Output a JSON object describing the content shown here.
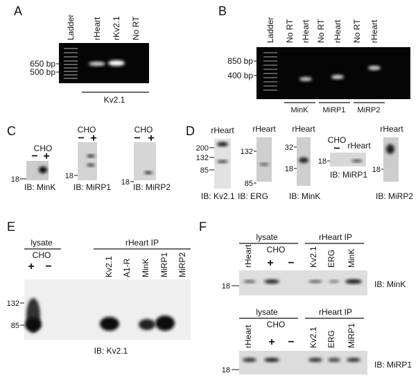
{
  "panels": {
    "a": {
      "label": "A",
      "lanes": [
        "Ladder",
        "rHeart",
        "rKv2.1",
        "No RT"
      ],
      "markers": [
        "650 bp",
        "500 bp"
      ],
      "group": "Kv2.1"
    },
    "b": {
      "label": "B",
      "lanes": [
        "Ladder",
        "No RT",
        "rHeart",
        "No RT",
        "rHeart",
        "No RT",
        "rHeart"
      ],
      "markers": [
        "850 bp",
        "400 bp"
      ],
      "groups": [
        "MinK",
        "MiRP1",
        "MiRP2"
      ]
    },
    "c": {
      "label": "C",
      "blots": [
        {
          "cell": "CHO",
          "minus": "−",
          "plus": "+",
          "marker": "18",
          "ib": "IB: MinK"
        },
        {
          "cell": "CHO",
          "minus": "−",
          "plus": "+",
          "marker": "18",
          "ib": "IB: MiRP1"
        },
        {
          "cell": "CHO",
          "minus": "−",
          "plus": "+",
          "marker": "18",
          "ib": "IB: MiRP2"
        }
      ]
    },
    "d": {
      "label": "D",
      "blots": [
        {
          "lane": "rHeart",
          "markers": [
            "200",
            "132",
            "85"
          ],
          "ib": "IB: Kv2.1"
        },
        {
          "lane": "rHeart",
          "markers": [
            "132",
            "85"
          ],
          "ib": "IB: ERG"
        },
        {
          "lane": "rHeart",
          "markers": [
            "32",
            "18"
          ],
          "ib": "IB: MinK"
        },
        {
          "cell": "CHO",
          "minus": "−",
          "lane": "rHeart",
          "markers": [
            "18"
          ],
          "ib": "IB: MiRP1"
        },
        {
          "lane": "rHeart",
          "markers": [
            "18"
          ],
          "ib": "IB: MiRP2"
        }
      ]
    },
    "e": {
      "label": "E",
      "lysate": "lysate",
      "cell": "CHO",
      "plus": "+",
      "minus": "−",
      "ip": "rHeart IP",
      "lanes": [
        "Kv2.1",
        "A1-R",
        "MinK",
        "MiRP1",
        "MiRP2"
      ],
      "markers": [
        "132",
        "85"
      ],
      "ib": "IB: Kv2.1"
    },
    "f": {
      "label": "F",
      "blots": [
        {
          "lysate": "lysate",
          "heart": "rHeart",
          "cell": "CHO",
          "plus": "+",
          "minus": "−",
          "ip": "rHeart IP",
          "lanes": [
            "Kv2.1",
            "ERG",
            "MinK"
          ],
          "marker": "18",
          "ib": "IB: MinK"
        },
        {
          "lysate": "lysate",
          "heart": "rHeart",
          "cell": "CHO",
          "plus": "+",
          "minus": "−",
          "ip": "rHeart IP",
          "lanes": [
            "Kv2.1",
            "ERG",
            "MiRP1"
          ],
          "marker": "18",
          "ib": "IB: MiRP1"
        }
      ]
    }
  }
}
